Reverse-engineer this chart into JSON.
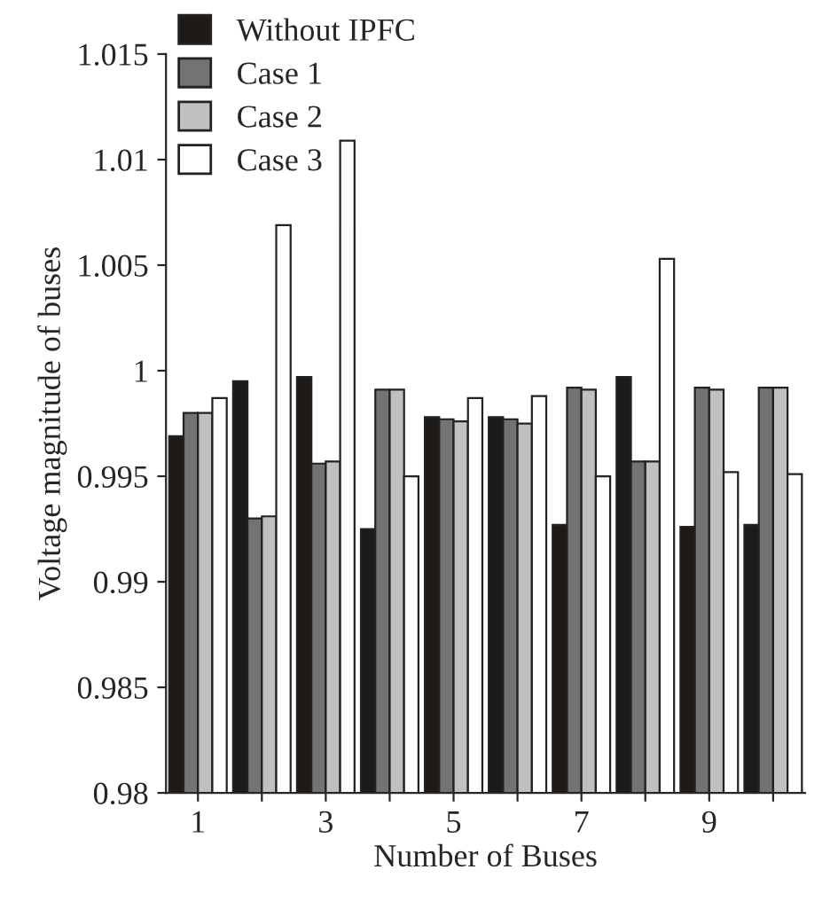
{
  "chart_data": {
    "type": "bar",
    "xlabel": "Number of Buses",
    "ylabel": "Voltage magnitude of buses",
    "categories": [
      "1",
      null,
      "3",
      null,
      "5",
      null,
      "7",
      null,
      "9",
      null
    ],
    "series": [
      {
        "name": "Without IPFC",
        "color": "#1e1a18",
        "values": [
          0.9969,
          0.9995,
          0.9997,
          0.9925,
          0.9978,
          0.9978,
          0.9927,
          0.9997,
          0.9926,
          0.9927
        ]
      },
      {
        "name": "Case 1",
        "color": "#737373",
        "values": [
          0.998,
          0.993,
          0.9956,
          0.9991,
          0.9977,
          0.9977,
          0.9992,
          0.9957,
          0.9992,
          0.9992
        ]
      },
      {
        "name": "Case 2",
        "color": "#c0c0c0",
        "values": [
          0.998,
          0.9931,
          0.9957,
          0.9991,
          0.9976,
          0.9975,
          0.9991,
          0.9957,
          0.9991,
          0.9992
        ]
      },
      {
        "name": "Case 3",
        "color": "#ffffff",
        "values": [
          0.9987,
          1.0069,
          1.0109,
          0.995,
          0.9987,
          0.9988,
          0.995,
          1.0053,
          0.9952,
          0.9951
        ]
      }
    ],
    "ylim": [
      0.98,
      1.015
    ],
    "yticks": [
      0.98,
      0.985,
      0.99,
      0.995,
      1,
      1.005,
      1.01,
      1.015
    ],
    "grid": false,
    "legend": "top left"
  }
}
